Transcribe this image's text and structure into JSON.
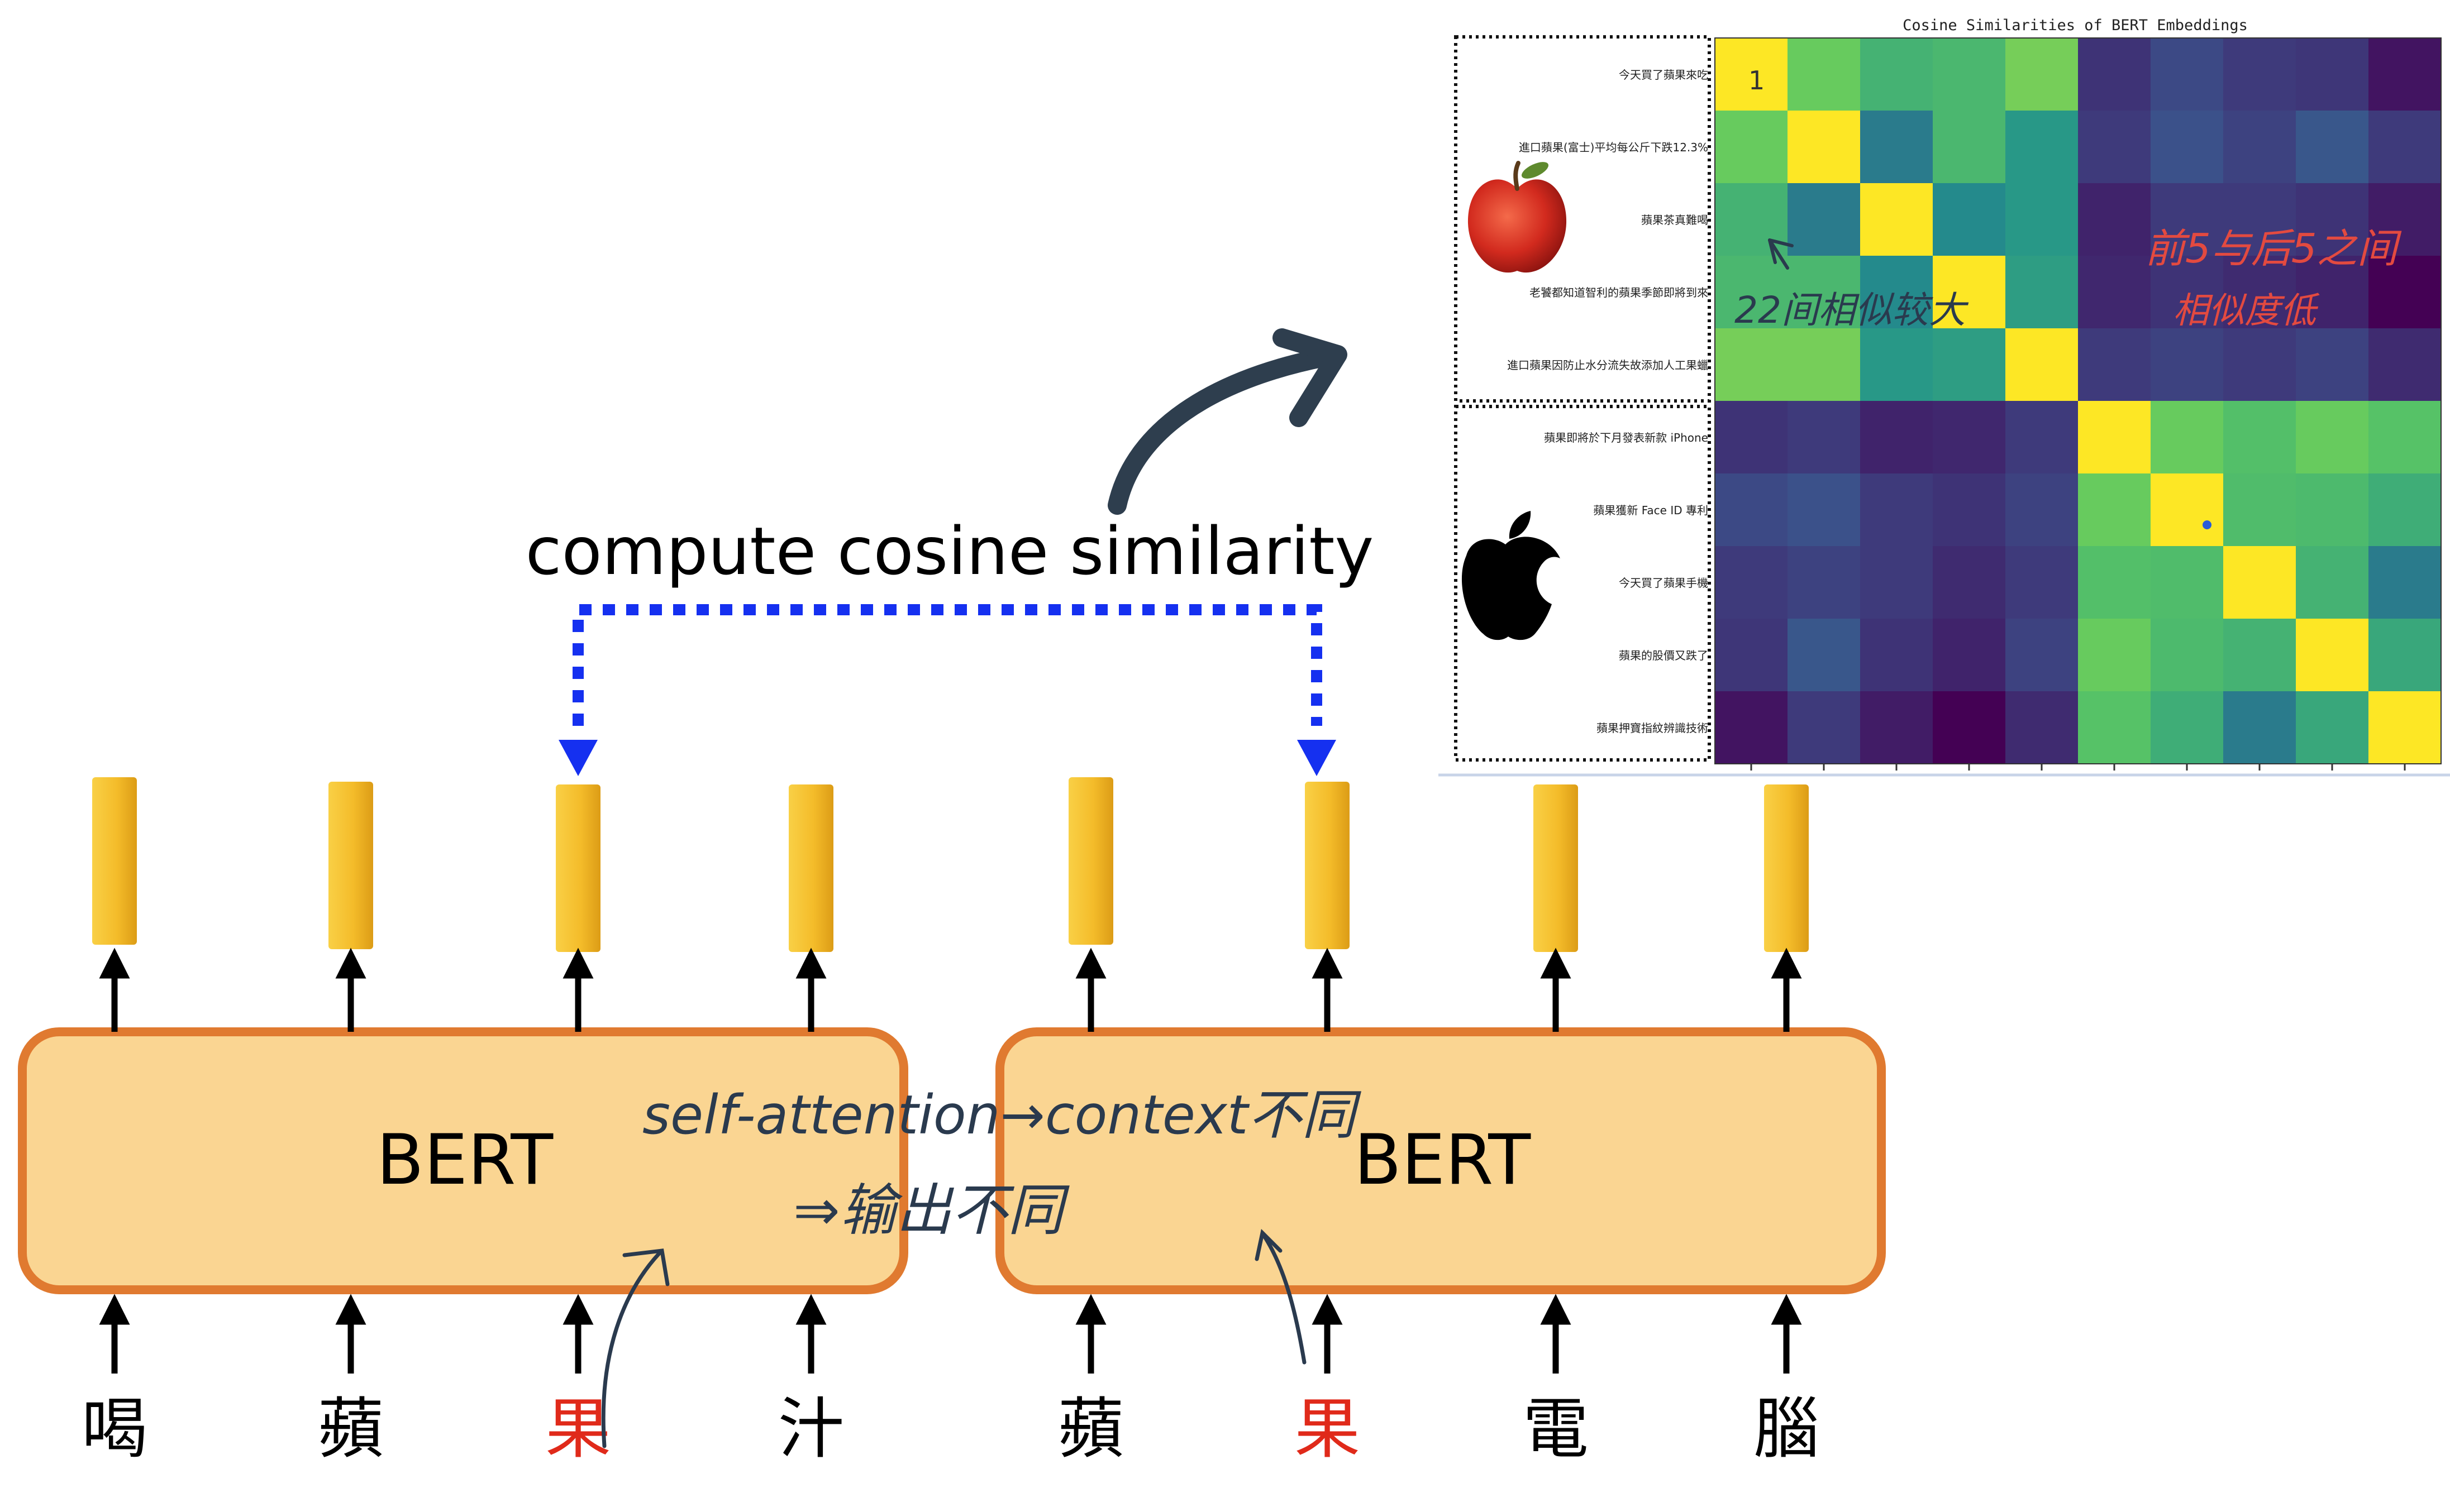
{
  "diagram": {
    "bert_left_label": "BERT",
    "bert_right_label": "BERT",
    "compute_label": "compute cosine similarity",
    "left_tokens": [
      {
        "char": "喝",
        "color": "#000000"
      },
      {
        "char": "蘋",
        "color": "#000000"
      },
      {
        "char": "果",
        "color": "#e02a1a"
      },
      {
        "char": "汁",
        "color": "#000000"
      }
    ],
    "right_tokens": [
      {
        "char": "蘋",
        "color": "#000000"
      },
      {
        "char": "果",
        "color": "#e02a1a"
      },
      {
        "char": "電",
        "color": "#000000"
      },
      {
        "char": "腦",
        "color": "#000000"
      }
    ],
    "annotation_line1": "self-attention→context不同",
    "annotation_line2": "⇒输出不同",
    "colors": {
      "bert_fill": "#fad592",
      "bert_border": "#e07a30",
      "embedding": "#f4bc2a",
      "dotted_arrow": "#1530f0",
      "curved_arrow": "#2e3e4e",
      "annotation_ink": "#2a3a4e",
      "red_ink": "#e34a40"
    }
  },
  "chart_data": {
    "type": "heatmap",
    "title": "Cosine Similarities of BERT Embeddings",
    "row_labels": [
      "今天買了蘋果來吃",
      "進口蘋果(富士)平均每公斤下跌12.3%",
      "蘋果茶真難喝",
      "老饕都知道智利的蘋果季節即將到來",
      "進口蘋果因防止水分流失故添加人工果蠟",
      "蘋果即將於下月發表新款 iPhone",
      "蘋果獲新 Face ID 專利",
      "今天買了蘋果手機",
      "蘋果的股價又跌了",
      "蘋果押寶指紋辨識技術"
    ],
    "values": [
      [
        1.0,
        0.8,
        0.7,
        0.72,
        0.82,
        0.28,
        0.34,
        0.3,
        0.29,
        0.2
      ],
      [
        0.8,
        1.0,
        0.5,
        0.72,
        0.6,
        0.3,
        0.36,
        0.32,
        0.38,
        0.3
      ],
      [
        0.7,
        0.5,
        1.0,
        0.55,
        0.6,
        0.24,
        0.3,
        0.3,
        0.28,
        0.22
      ],
      [
        0.72,
        0.72,
        0.55,
        1.0,
        0.62,
        0.25,
        0.28,
        0.26,
        0.24,
        0.15
      ],
      [
        0.82,
        0.82,
        0.6,
        0.62,
        1.0,
        0.3,
        0.32,
        0.3,
        0.32,
        0.26
      ],
      [
        0.28,
        0.3,
        0.24,
        0.25,
        0.3,
        1.0,
        0.8,
        0.75,
        0.8,
        0.76
      ],
      [
        0.34,
        0.36,
        0.3,
        0.28,
        0.32,
        0.8,
        1.0,
        0.74,
        0.73,
        0.68
      ],
      [
        0.3,
        0.32,
        0.3,
        0.26,
        0.3,
        0.75,
        0.74,
        1.0,
        0.7,
        0.5
      ],
      [
        0.29,
        0.38,
        0.28,
        0.24,
        0.32,
        0.8,
        0.73,
        0.7,
        1.0,
        0.66
      ],
      [
        0.2,
        0.3,
        0.22,
        0.15,
        0.26,
        0.76,
        0.68,
        0.5,
        0.66,
        1.0
      ]
    ],
    "cell_annotation": "1",
    "group_icons": [
      "apple-fruit-icon",
      "apple-logo-icon"
    ],
    "notes": {
      "left": "22间相似较大",
      "right_line1": "前5与后5之间",
      "right_line2": "相似度低"
    }
  }
}
